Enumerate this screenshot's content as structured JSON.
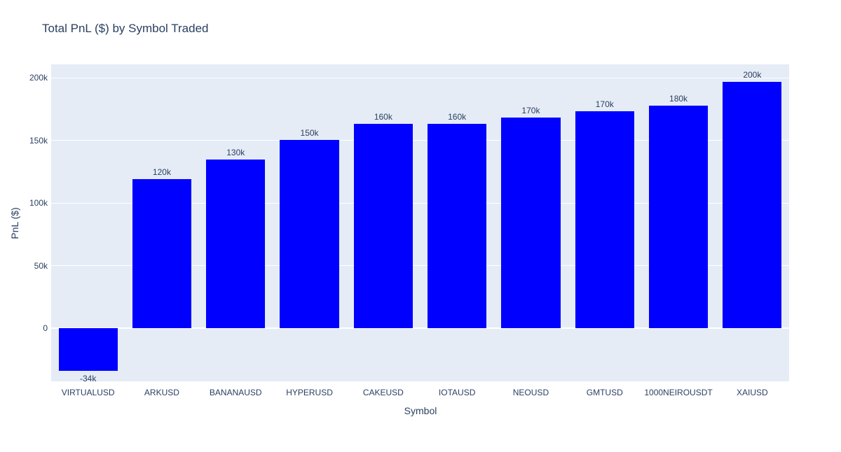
{
  "chart_data": {
    "type": "bar",
    "title": "Total PnL ($) by Symbol Traded",
    "xlabel": "Symbol",
    "ylabel": "PnL ($)",
    "categories": [
      "VIRTUALUSD",
      "ARKUSD",
      "BANANAUSD",
      "HYPERUSD",
      "CAKEUSD",
      "IOTAUSD",
      "NEOUSD",
      "GMTUSD",
      "1000NEIROUSDT",
      "XAIUSD"
    ],
    "values_k": [
      -34,
      119,
      134.5,
      150.5,
      163,
      163,
      168,
      173.5,
      178,
      197
    ],
    "bar_labels": [
      "-34k",
      "120k",
      "130k",
      "150k",
      "160k",
      "160k",
      "170k",
      "170k",
      "180k",
      "200k"
    ],
    "y_ticks": [
      {
        "value": 0,
        "label": "0"
      },
      {
        "value": 50,
        "label": "50k"
      },
      {
        "value": 100,
        "label": "100k"
      },
      {
        "value": 150,
        "label": "150k"
      },
      {
        "value": 200,
        "label": "200k"
      }
    ],
    "ylim_k": [
      -42.5,
      210.7
    ],
    "grid": true,
    "legend": false,
    "colors": {
      "bar": "#0000ff",
      "plot_bg": "#e5ecf6",
      "paper_bg": "#ffffff",
      "grid": "#ffffff",
      "zeroline": "#ffffff",
      "text": "#2a3f5f"
    }
  }
}
